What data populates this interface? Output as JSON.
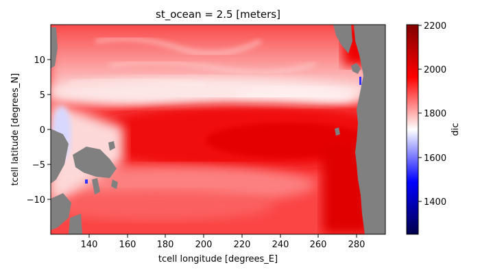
{
  "chart_data": {
    "type": "heatmap",
    "title": "st_ocean = 2.5 [meters]",
    "xlabel": "tcell longitude [degrees_E]",
    "ylabel": "tcell latitude [degrees_N]",
    "xlim": [
      120,
      295
    ],
    "ylim": [
      -15,
      15
    ],
    "x_ticks": [
      140,
      160,
      180,
      200,
      220,
      240,
      260,
      280
    ],
    "x_tick_labels": [
      "140",
      "160",
      "180",
      "200",
      "220",
      "240",
      "260",
      "280"
    ],
    "y_ticks": [
      -10,
      -5,
      0,
      5,
      10
    ],
    "y_tick_labels": [
      "−10",
      "−5",
      "0",
      "5",
      "10"
    ],
    "colorbar": {
      "label": "dic",
      "range": [
        1250,
        2200
      ],
      "ticks": [
        1400,
        1600,
        1800,
        2000,
        2200
      ],
      "tick_labels": [
        "1400",
        "1600",
        "1800",
        "2000",
        "2200"
      ],
      "colormap": "seismic"
    },
    "land_color": "#808080",
    "description_values": {
      "equatorial_band_dic": 2000,
      "offequator_north_dic": 1850,
      "western_pacific_min_dic": 1650
    }
  }
}
